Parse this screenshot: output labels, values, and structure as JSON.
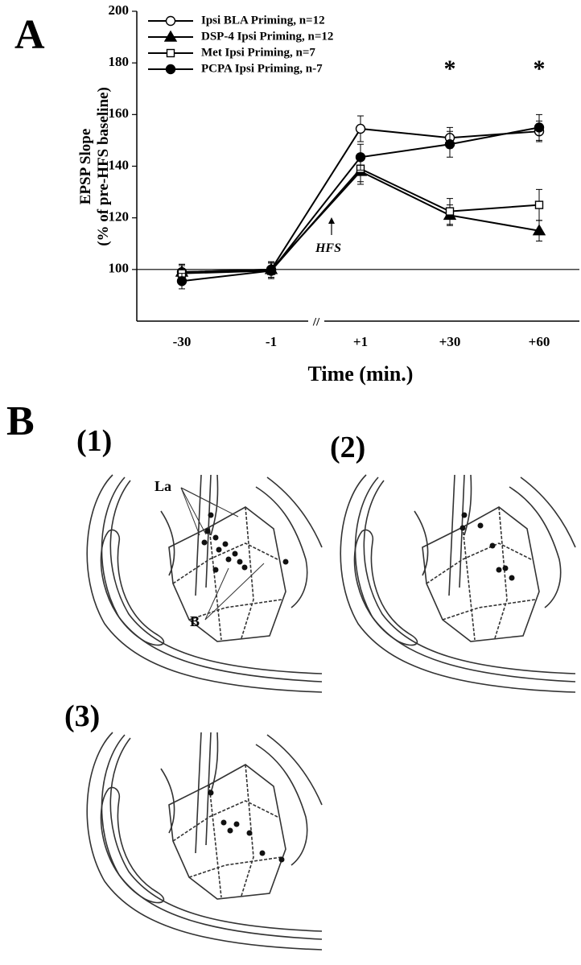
{
  "chart_data": {
    "type": "line",
    "panel_label": "A",
    "ylabel": [
      "EPSP Slope",
      "(% of pre-HFS baseline)"
    ],
    "xlabel": "Time (min.)",
    "categories": [
      "-30",
      "-1",
      "+1",
      "+30",
      "+60"
    ],
    "ylim": [
      80,
      200
    ],
    "yticks": [
      100,
      120,
      140,
      160,
      180,
      200
    ],
    "reference_line": 100,
    "series": [
      {
        "name": "Ipsi BLA Priming, n=12",
        "marker": "open-circle",
        "color": "#000000",
        "values": [
          99,
          100,
          154.5,
          151,
          153.5
        ],
        "errors": [
          3,
          3,
          5,
          4,
          4
        ]
      },
      {
        "name": "DSP-4 Ipsi Priming, n=12",
        "marker": "filled-triangle",
        "color": "#000000",
        "values": [
          99,
          100,
          138,
          121,
          115
        ],
        "errors": [
          3,
          3,
          5,
          4,
          4
        ]
      },
      {
        "name": "Met Ipsi Priming, n=7",
        "marker": "open-square",
        "color": "#000000",
        "values": [
          98.5,
          99.5,
          139,
          122.5,
          125
        ],
        "errors": [
          3,
          3,
          5,
          5,
          6
        ]
      },
      {
        "name": "PCPA Ipsi Priming, n-7",
        "marker": "filled-circle",
        "color": "#000000",
        "values": [
          95.5,
          99.5,
          143.5,
          148.5,
          155
        ],
        "errors": [
          3,
          3,
          5,
          5,
          5
        ]
      }
    ],
    "annotations": [
      {
        "text": "*",
        "at": "+30"
      },
      {
        "text": "*",
        "at": "+60"
      }
    ],
    "event_label": "HFS",
    "axis_break": "//"
  },
  "panel_b": {
    "label": "B",
    "sections": [
      {
        "label": "(1)",
        "annotations": [
          "La",
          "B"
        ]
      },
      {
        "label": "(2)"
      },
      {
        "label": "(3)"
      }
    ]
  }
}
